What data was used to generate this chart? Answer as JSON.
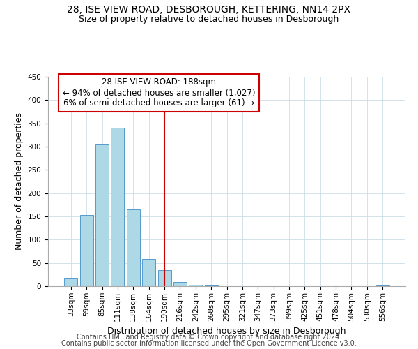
{
  "title": "28, ISE VIEW ROAD, DESBOROUGH, KETTERING, NN14 2PX",
  "subtitle": "Size of property relative to detached houses in Desborough",
  "xlabel": "Distribution of detached houses by size in Desborough",
  "ylabel": "Number of detached properties",
  "bar_labels": [
    "33sqm",
    "59sqm",
    "85sqm",
    "111sqm",
    "138sqm",
    "164sqm",
    "190sqm",
    "216sqm",
    "242sqm",
    "268sqm",
    "295sqm",
    "321sqm",
    "347sqm",
    "373sqm",
    "399sqm",
    "425sqm",
    "451sqm",
    "478sqm",
    "504sqm",
    "530sqm",
    "556sqm"
  ],
  "bar_values": [
    18,
    153,
    305,
    340,
    165,
    58,
    35,
    9,
    3,
    1,
    0,
    0,
    0,
    0,
    0,
    0,
    0,
    0,
    0,
    0,
    2
  ],
  "bar_color": "#add8e6",
  "bar_edge_color": "#5599cc",
  "vline_index": 6,
  "vline_color": "#cc0000",
  "annotation_line1": "28 ISE VIEW ROAD: 188sqm",
  "annotation_line2": "← 94% of detached houses are smaller (1,027)",
  "annotation_line3": "6% of semi-detached houses are larger (61) →",
  "annotation_box_color": "#ffffff",
  "annotation_box_edge": "#cc0000",
  "ylim": [
    0,
    450
  ],
  "yticks": [
    0,
    50,
    100,
    150,
    200,
    250,
    300,
    350,
    400,
    450
  ],
  "footer1": "Contains HM Land Registry data © Crown copyright and database right 2024.",
  "footer2": "Contains public sector information licensed under the Open Government Licence v3.0.",
  "title_fontsize": 10,
  "subtitle_fontsize": 9,
  "axis_label_fontsize": 9,
  "tick_fontsize": 7.5,
  "annotation_fontsize": 8.5,
  "footer_fontsize": 7,
  "background_color": "#ffffff",
  "grid_color": "#ccdde8"
}
